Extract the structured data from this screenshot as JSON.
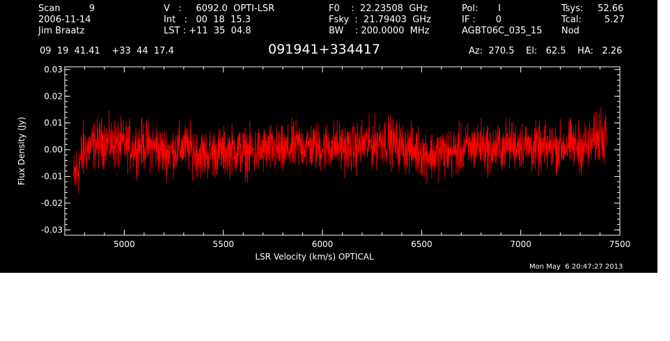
{
  "header": {
    "col1": [
      "Scan          9",
      "2006-11-14",
      "Jim Braatz"
    ],
    "col2": [
      "V   :     6092.0  OPTI-LSR",
      "Int   :   00  18  15.3",
      "LST : +11  35  04.8"
    ],
    "col3": [
      "F0    :  22.23508  GHz",
      "Fsky  :  21.79403  GHz",
      "BW    : 200.0000  MHz"
    ],
    "col4": [
      "Pol:       I",
      "IF :       0",
      "AGBT06C_035_15"
    ],
    "col5": [
      "Tsys:     52.66",
      "Tcal:        5.27",
      "Nod"
    ],
    "coords": "09  19  41.41    +33  44  17.4",
    "source": "091941+334417",
    "azel": "Az:  270.5    El:   62.5    HA:   2.26"
  },
  "footer_date": "Mon May  6 20:47:27 2013",
  "chart_data": {
    "type": "line",
    "title": "091941+334417",
    "xlabel": "LSR Velocity (km/s) OPTICAL",
    "ylabel": "Flux Density (Jy)",
    "xlim": [
      4700,
      7500
    ],
    "ylim": [
      -0.032,
      0.031
    ],
    "xticks": [
      5000,
      5500,
      6000,
      6500,
      7000,
      7500
    ],
    "yticks": [
      -0.03,
      -0.02,
      -0.01,
      0.0,
      0.01,
      0.02,
      0.03
    ],
    "ytick_labels": [
      "-0.03",
      "-0.02",
      "-0.01",
      "0.00",
      "0.01",
      "0.02",
      "0.03"
    ],
    "series_color": "#ff0000",
    "series": [
      {
        "x": [
          4745,
          4760,
          4780,
          4800,
          4850,
          4900,
          4950,
          5000,
          5050,
          5100,
          5150,
          5200,
          5250,
          5300,
          5350,
          5400,
          5450,
          5500,
          5550,
          5600,
          5650,
          5700,
          5750,
          5800,
          5850,
          5900,
          5950,
          6000,
          6050,
          6100,
          6150,
          6200,
          6250,
          6300,
          6350,
          6400,
          6450,
          6500,
          6550,
          6600,
          6650,
          6700,
          6750,
          6800,
          6850,
          6900,
          6950,
          7000,
          7050,
          7100,
          7150,
          7200,
          7250,
          7300,
          7350,
          7380,
          7400,
          7420,
          7435
        ],
        "y": [
          -0.012,
          -0.008,
          -0.004,
          0.0,
          0.002,
          0.003,
          0.002,
          0.002,
          0.001,
          0.002,
          0.001,
          -0.001,
          0.0,
          0.001,
          0.0,
          -0.002,
          -0.001,
          -0.001,
          0.0,
          -0.001,
          -0.001,
          0.0,
          0.0,
          -0.001,
          0.001,
          0.002,
          0.001,
          0.001,
          0.002,
          0.001,
          0.0,
          0.002,
          0.002,
          0.004,
          0.003,
          0.001,
          0.0,
          -0.001,
          -0.002,
          -0.001,
          -0.001,
          0.0,
          0.001,
          0.002,
          0.0,
          0.001,
          0.002,
          0.002,
          0.001,
          0.0,
          0.001,
          0.001,
          0.002,
          0.001,
          0.002,
          0.004,
          0.006,
          0.008,
          0.012
        ]
      }
    ]
  }
}
